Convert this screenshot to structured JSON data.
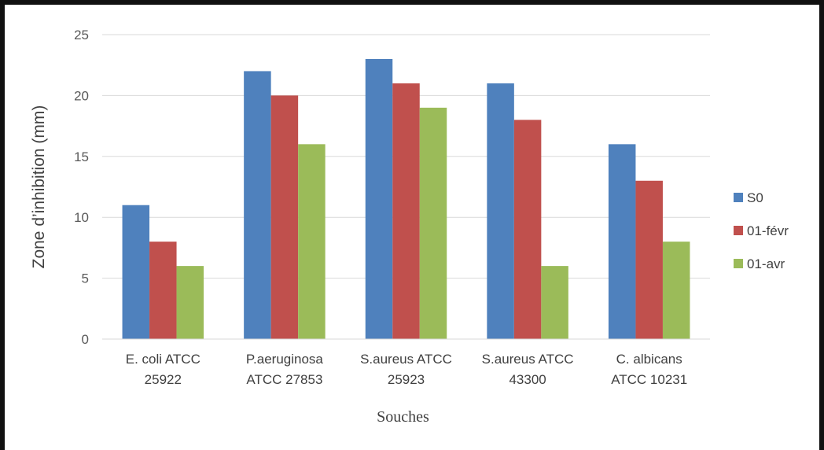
{
  "chart_data": {
    "type": "bar",
    "title": "",
    "xlabel": "Souches",
    "ylabel": "Zone d’inhibition (mm)",
    "ylim": [
      0,
      25
    ],
    "yticks": [
      0,
      5,
      10,
      15,
      20,
      25
    ],
    "grid": true,
    "legend_position": "right",
    "categories": [
      [
        "E. coli ATCC",
        "25922"
      ],
      [
        "P.aeruginosa",
        "ATCC 27853"
      ],
      [
        "S.aureus ATCC",
        "25923"
      ],
      [
        "S.aureus ATCC",
        "43300"
      ],
      [
        "C. albicans",
        "ATCC 10231"
      ]
    ],
    "series": [
      {
        "name": "S0",
        "color": "#4F81BD",
        "values": [
          11,
          22,
          23,
          21,
          16
        ]
      },
      {
        "name": "01-févr",
        "color": "#C0504D",
        "values": [
          8,
          20,
          21,
          18,
          13
        ]
      },
      {
        "name": "01-avr",
        "color": "#9BBB59",
        "values": [
          6,
          16,
          19,
          6,
          8
        ]
      }
    ]
  }
}
